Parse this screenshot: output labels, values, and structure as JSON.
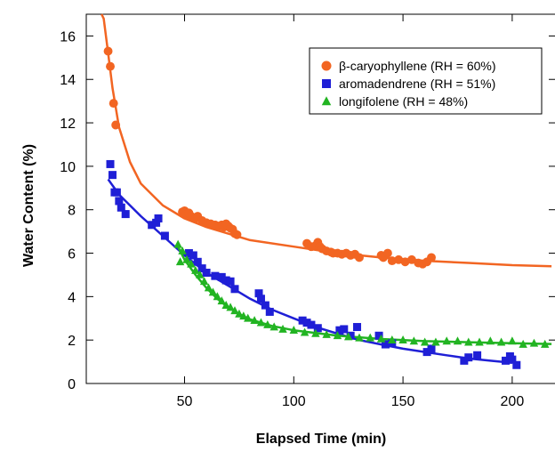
{
  "chart_data": {
    "type": "scatter",
    "xlabel": "Elapsed Time (min)",
    "ylabel": "Water Content (%)",
    "xlim": [
      5,
      220
    ],
    "ylim": [
      0,
      17
    ],
    "xticks": [
      50,
      100,
      150,
      200
    ],
    "yticks": [
      0,
      2,
      4,
      6,
      8,
      10,
      12,
      14,
      16
    ],
    "grid": false,
    "legend_position": "top-right",
    "series": [
      {
        "name": "β-caryophyllene (RH = 60%)",
        "marker": "circle",
        "color": "#f26522",
        "points": [
          [
            15,
            15.3
          ],
          [
            16,
            14.6
          ],
          [
            17.5,
            12.9
          ],
          [
            18.5,
            11.9
          ],
          [
            49,
            7.9
          ],
          [
            50,
            7.95
          ],
          [
            51,
            7.8
          ],
          [
            52,
            7.85
          ],
          [
            53,
            7.7
          ],
          [
            55,
            7.6
          ],
          [
            56,
            7.7
          ],
          [
            58,
            7.5
          ],
          [
            60,
            7.4
          ],
          [
            62,
            7.35
          ],
          [
            64,
            7.3
          ],
          [
            66,
            7.25
          ],
          [
            67,
            7.3
          ],
          [
            68,
            7.2
          ],
          [
            69,
            7.35
          ],
          [
            70,
            7.25
          ],
          [
            71,
            7.15
          ],
          [
            72,
            7.1
          ],
          [
            73,
            6.9
          ],
          [
            74,
            6.85
          ],
          [
            106,
            6.45
          ],
          [
            108,
            6.3
          ],
          [
            110,
            6.35
          ],
          [
            111,
            6.5
          ],
          [
            112,
            6.3
          ],
          [
            113,
            6.2
          ],
          [
            115,
            6.1
          ],
          [
            117,
            6.05
          ],
          [
            118,
            6.0
          ],
          [
            120,
            6.0
          ],
          [
            122,
            5.95
          ],
          [
            124,
            6.0
          ],
          [
            126,
            5.9
          ],
          [
            128,
            5.95
          ],
          [
            130,
            5.8
          ],
          [
            140,
            5.9
          ],
          [
            141,
            5.8
          ],
          [
            143,
            6.0
          ],
          [
            145,
            5.65
          ],
          [
            148,
            5.7
          ],
          [
            151,
            5.6
          ],
          [
            154,
            5.7
          ],
          [
            157,
            5.55
          ],
          [
            159,
            5.5
          ],
          [
            161,
            5.6
          ],
          [
            163,
            5.8
          ]
        ],
        "fit": [
          [
            12,
            17
          ],
          [
            13,
            16.8
          ],
          [
            15,
            15.2
          ],
          [
            17,
            13.6
          ],
          [
            20,
            11.8
          ],
          [
            25,
            10.2
          ],
          [
            30,
            9.2
          ],
          [
            40,
            8.2
          ],
          [
            50,
            7.6
          ],
          [
            60,
            7.2
          ],
          [
            70,
            6.9
          ],
          [
            80,
            6.6
          ],
          [
            100,
            6.3
          ],
          [
            120,
            6.0
          ],
          [
            140,
            5.8
          ],
          [
            160,
            5.65
          ],
          [
            180,
            5.55
          ],
          [
            200,
            5.45
          ],
          [
            218,
            5.4
          ]
        ]
      },
      {
        "name": "aromadendrene (RH = 51%)",
        "marker": "square",
        "color": "#1f1fd6",
        "points": [
          [
            16,
            10.1
          ],
          [
            17,
            9.6
          ],
          [
            18,
            8.8
          ],
          [
            19,
            8.8
          ],
          [
            20,
            8.4
          ],
          [
            21,
            8.1
          ],
          [
            23,
            7.8
          ],
          [
            35,
            7.3
          ],
          [
            37,
            7.4
          ],
          [
            38,
            7.6
          ],
          [
            41,
            6.8
          ],
          [
            52,
            6.0
          ],
          [
            54,
            5.9
          ],
          [
            56,
            5.6
          ],
          [
            58,
            5.3
          ],
          [
            60,
            5.1
          ],
          [
            64,
            4.95
          ],
          [
            67,
            4.9
          ],
          [
            69,
            4.75
          ],
          [
            71,
            4.7
          ],
          [
            73,
            4.35
          ],
          [
            84,
            4.15
          ],
          [
            85,
            3.9
          ],
          [
            87,
            3.6
          ],
          [
            89,
            3.3
          ],
          [
            104,
            2.9
          ],
          [
            106,
            2.8
          ],
          [
            108,
            2.7
          ],
          [
            111,
            2.55
          ],
          [
            121,
            2.45
          ],
          [
            123,
            2.5
          ],
          [
            126,
            2.2
          ],
          [
            129,
            2.6
          ],
          [
            139,
            2.2
          ],
          [
            142,
            1.8
          ],
          [
            145,
            1.85
          ],
          [
            161,
            1.45
          ],
          [
            163,
            1.6
          ],
          [
            178,
            1.05
          ],
          [
            180,
            1.2
          ],
          [
            184,
            1.3
          ],
          [
            197,
            1.05
          ],
          [
            199,
            1.25
          ],
          [
            200,
            1.1
          ],
          [
            202,
            0.85
          ]
        ],
        "fit": [
          [
            15,
            9.4
          ],
          [
            20,
            8.7
          ],
          [
            30,
            7.7
          ],
          [
            40,
            6.8
          ],
          [
            50,
            5.9
          ],
          [
            60,
            5.1
          ],
          [
            70,
            4.5
          ],
          [
            80,
            3.9
          ],
          [
            90,
            3.4
          ],
          [
            100,
            3.0
          ],
          [
            110,
            2.6
          ],
          [
            120,
            2.3
          ],
          [
            130,
            2.0
          ],
          [
            140,
            1.8
          ],
          [
            150,
            1.6
          ],
          [
            160,
            1.45
          ],
          [
            170,
            1.3
          ],
          [
            180,
            1.15
          ],
          [
            190,
            1.05
          ],
          [
            200,
            0.95
          ]
        ]
      },
      {
        "name": "longifolene (RH = 48%)",
        "marker": "triangle",
        "color": "#22b422",
        "points": [
          [
            47,
            6.4
          ],
          [
            48,
            5.6
          ],
          [
            49,
            6.1
          ],
          [
            51,
            5.7
          ],
          [
            53,
            5.5
          ],
          [
            55,
            5.2
          ],
          [
            57,
            5.0
          ],
          [
            59,
            4.7
          ],
          [
            61,
            4.4
          ],
          [
            63,
            4.2
          ],
          [
            65,
            4.0
          ],
          [
            67,
            3.8
          ],
          [
            69,
            3.6
          ],
          [
            71,
            3.5
          ],
          [
            73,
            3.35
          ],
          [
            75,
            3.2
          ],
          [
            77,
            3.1
          ],
          [
            79,
            3.0
          ],
          [
            82,
            2.9
          ],
          [
            85,
            2.8
          ],
          [
            88,
            2.7
          ],
          [
            91,
            2.6
          ],
          [
            95,
            2.5
          ],
          [
            100,
            2.45
          ],
          [
            105,
            2.35
          ],
          [
            110,
            2.3
          ],
          [
            115,
            2.25
          ],
          [
            120,
            2.2
          ],
          [
            125,
            2.15
          ],
          [
            130,
            2.1
          ],
          [
            135,
            2.1
          ],
          [
            140,
            2.05
          ],
          [
            145,
            2.0
          ],
          [
            150,
            2.0
          ],
          [
            155,
            1.95
          ],
          [
            160,
            1.9
          ],
          [
            165,
            1.9
          ],
          [
            170,
            1.95
          ],
          [
            175,
            1.95
          ],
          [
            180,
            1.9
          ],
          [
            185,
            1.9
          ],
          [
            190,
            1.95
          ],
          [
            195,
            1.9
          ],
          [
            200,
            1.95
          ],
          [
            205,
            1.8
          ],
          [
            210,
            1.85
          ],
          [
            215,
            1.8
          ]
        ],
        "fit": [
          [
            47,
            6.3
          ],
          [
            50,
            5.7
          ],
          [
            55,
            5.0
          ],
          [
            60,
            4.4
          ],
          [
            65,
            3.9
          ],
          [
            70,
            3.5
          ],
          [
            75,
            3.2
          ],
          [
            80,
            2.95
          ],
          [
            90,
            2.65
          ],
          [
            100,
            2.45
          ],
          [
            120,
            2.2
          ],
          [
            140,
            2.05
          ],
          [
            160,
            1.95
          ],
          [
            180,
            1.9
          ],
          [
            200,
            1.85
          ],
          [
            218,
            1.82
          ]
        ]
      }
    ]
  }
}
